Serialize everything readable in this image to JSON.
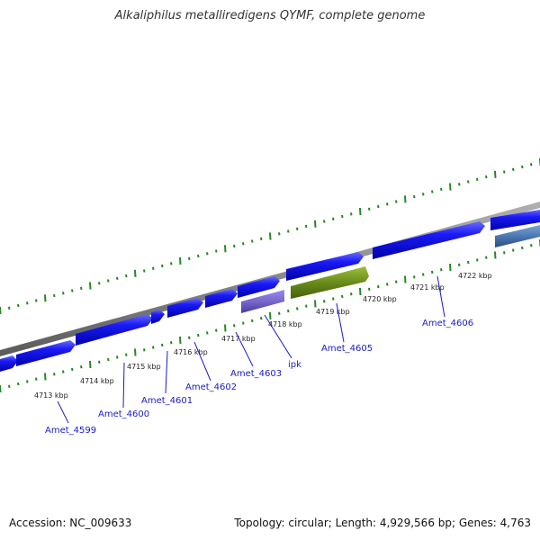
{
  "title": "Alkaliphilus metalliredigens QYMF, complete genome",
  "footer": {
    "accession": "Accession: NC_009633",
    "summary": "Topology: circular; Length: 4,929,566 bp; Genes: 4,763"
  },
  "colors": {
    "backbone": "#8a8a8a",
    "gene_forward": "#1010ee",
    "gene_selected": "#7766cc",
    "gene_green": "#6a8a1a",
    "gene_steel": "#4a78b0",
    "tick": "#228822",
    "label": "#1a1acc",
    "kbp_text": "#222222"
  },
  "kbp_labels": [
    "4713 kbp",
    "4714 kbp",
    "4715 kbp",
    "4716 kbp",
    "4717 kbp",
    "4718 kbp",
    "4719 kbp",
    "4720 kbp",
    "4721 kbp",
    "4722 kbp"
  ],
  "gene_labels": [
    "Amet_4599",
    "Amet_4600",
    "Amet_4601",
    "Amet_4602",
    "Amet_4603",
    "ipk",
    "Amet_4605",
    "Amet_4606"
  ]
}
